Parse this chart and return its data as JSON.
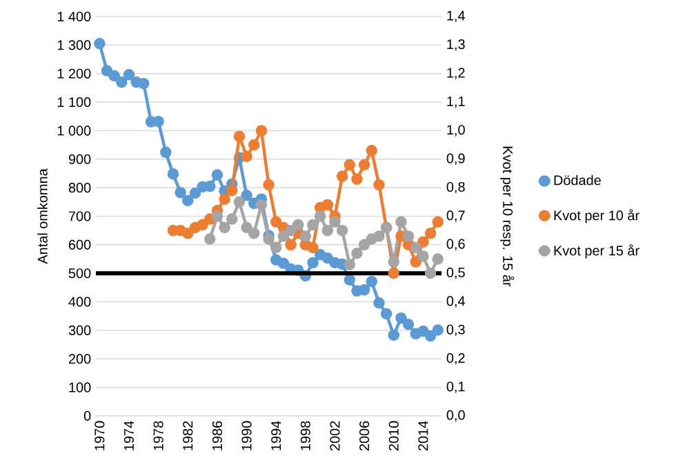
{
  "chart_data": {
    "type": "line",
    "xlabel": null,
    "ylabel": "Antal omkomna",
    "y2label": "Kvot per 10 resp. 15 år",
    "x": [
      1970,
      1971,
      1972,
      1973,
      1974,
      1975,
      1976,
      1977,
      1978,
      1979,
      1980,
      1981,
      1982,
      1983,
      1984,
      1985,
      1986,
      1987,
      1988,
      1989,
      1990,
      1991,
      1992,
      1993,
      1994,
      1995,
      1996,
      1997,
      1998,
      1999,
      2000,
      2001,
      2002,
      2003,
      2004,
      2005,
      2006,
      2007,
      2008,
      2009,
      2010,
      2011,
      2012,
      2013,
      2014,
      2015,
      2016
    ],
    "xlim": [
      1969.5,
      2016.5
    ],
    "xticks": [
      1970,
      1974,
      1978,
      1982,
      1986,
      1990,
      1994,
      1998,
      2002,
      2006,
      2010,
      2014
    ],
    "ylim": [
      0,
      1400
    ],
    "yticks": [
      0,
      100,
      200,
      300,
      400,
      500,
      600,
      700,
      800,
      900,
      {
        "value": 1000,
        "label": "1 000"
      },
      {
        "value": 1100,
        "label": "1 100"
      },
      {
        "value": 1200,
        "label": "1 200"
      },
      {
        "value": 1300,
        "label": "1 300"
      },
      {
        "value": 1400,
        "label": "1 400"
      }
    ],
    "y2lim": [
      0,
      1.4
    ],
    "y2ticks": [
      {
        "value": 0,
        "label": "0,0"
      },
      {
        "value": 0.1,
        "label": "0,1"
      },
      {
        "value": 0.2,
        "label": "0,2"
      },
      {
        "value": 0.3,
        "label": "0,3"
      },
      {
        "value": 0.4,
        "label": "0,4"
      },
      {
        "value": 0.5,
        "label": "0,5"
      },
      {
        "value": 0.6,
        "label": "0,6"
      },
      {
        "value": 0.7,
        "label": "0,7"
      },
      {
        "value": 0.8,
        "label": "0,8"
      },
      {
        "value": 0.9,
        "label": "0,9"
      },
      {
        "value": 1.0,
        "label": "1,0"
      },
      {
        "value": 1.1,
        "label": "1,1"
      },
      {
        "value": 1.2,
        "label": "1,2"
      },
      {
        "value": 1.3,
        "label": "1,3"
      },
      {
        "value": 1.4,
        "label": "1,4"
      }
    ],
    "series": [
      {
        "name": "Dödade",
        "color": "#5b9bd5",
        "values": [
          1305,
          1210,
          1192,
          1170,
          1196,
          1170,
          1165,
          1031,
          1032,
          924,
          848,
          783,
          755,
          781,
          803,
          805,
          845,
          788,
          813,
          905,
          773,
          745,
          760,
          632,
          547,
          535,
          515,
          511,
          491,
          537,
          565,
          553,
          537,
          532,
          477,
          438,
          442,
          471,
          396,
          358,
          283,
          343,
          321,
          288,
          297,
          280,
          301
        ]
      },
      {
        "name": "Kvot per 10 år",
        "color": "#ed7d31",
        "axis": "y2",
        "values": [
          null,
          null,
          null,
          null,
          null,
          null,
          null,
          null,
          null,
          null,
          0.65,
          0.65,
          0.64,
          0.66,
          0.67,
          0.69,
          0.72,
          0.76,
          0.79,
          0.98,
          0.91,
          0.95,
          1.0,
          0.81,
          0.68,
          0.66,
          0.6,
          0.64,
          0.6,
          0.59,
          0.73,
          0.74,
          0.7,
          0.84,
          0.88,
          0.83,
          0.88,
          0.93,
          0.81,
          0.66,
          0.5,
          0.63,
          0.6,
          0.54,
          0.61,
          0.64,
          0.68
        ]
      },
      {
        "name": "Kvot per 15 år",
        "color": "#a5a5a5",
        "axis": "y2",
        "values": [
          null,
          null,
          null,
          null,
          null,
          null,
          null,
          null,
          null,
          null,
          null,
          null,
          null,
          null,
          null,
          0.62,
          0.7,
          0.66,
          0.69,
          0.75,
          0.66,
          0.64,
          0.74,
          0.62,
          0.59,
          0.63,
          0.65,
          0.67,
          0.63,
          0.67,
          0.7,
          0.65,
          0.68,
          0.65,
          0.53,
          0.57,
          0.6,
          0.62,
          0.63,
          0.66,
          0.54,
          0.68,
          0.63,
          0.59,
          0.56,
          0.5,
          0.55
        ]
      }
    ],
    "ref_lines": [
      {
        "axis": "y2",
        "value": 0.5,
        "color": "#000000",
        "line_style": "solid"
      }
    ],
    "grid": "y",
    "legend": "right",
    "marker": "circle",
    "line_style": "solid"
  }
}
